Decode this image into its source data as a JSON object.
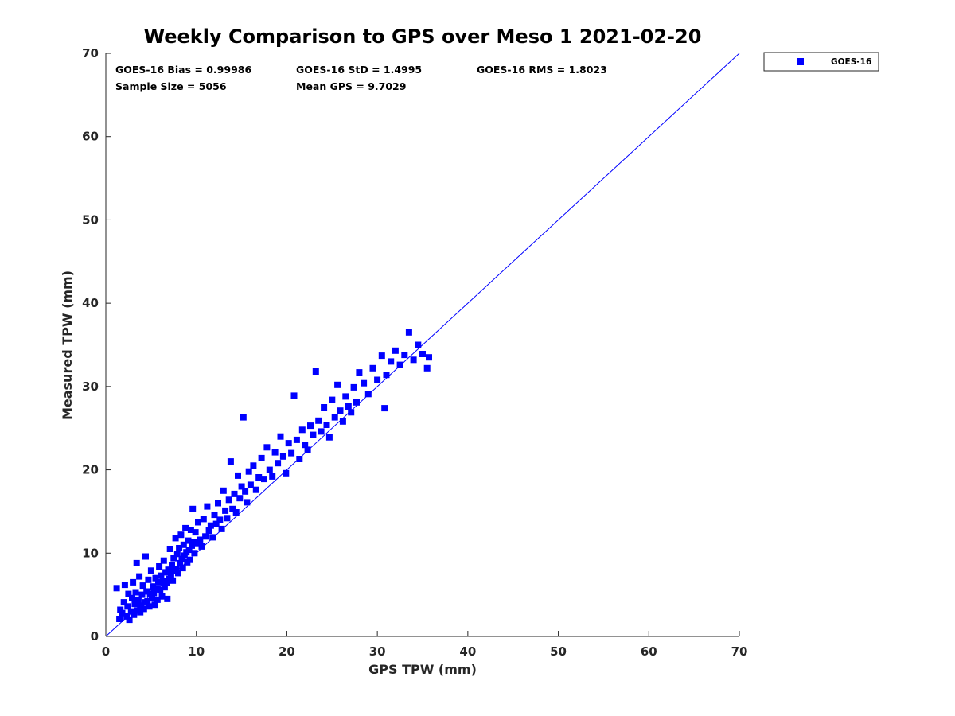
{
  "chart_data": {
    "type": "scatter",
    "title": "Weekly Comparison to GPS over Meso 1 2021-02-20",
    "xlabel": "GPS TPW (mm)",
    "ylabel": "Measured TPW (mm)",
    "xlim": [
      0,
      70
    ],
    "ylim": [
      0,
      70
    ],
    "xticks": [
      "0",
      "10",
      "20",
      "30",
      "40",
      "50",
      "60",
      "70"
    ],
    "yticks": [
      "0",
      "10",
      "20",
      "30",
      "40",
      "50",
      "60",
      "70"
    ],
    "grid": false,
    "legend_position": "outside-top-right",
    "reference_line": {
      "from": [
        0,
        0
      ],
      "to": [
        70,
        70
      ],
      "color": "#0000ff"
    },
    "annotations": {
      "bias": "GOES-16 Bias = 0.99986",
      "std": "GOES-16 StD = 1.4995",
      "rms": "GOES-16 RMS = 1.8023",
      "sample": "Sample Size = 5056",
      "mean": "Mean GPS = 9.7029"
    },
    "series": [
      {
        "name": "GOES-16",
        "color": "#0000ff",
        "marker": "square",
        "points": [
          [
            1.2,
            5.8
          ],
          [
            1.5,
            2.1
          ],
          [
            1.6,
            3.2
          ],
          [
            1.8,
            2.8
          ],
          [
            2.0,
            4.1
          ],
          [
            2.1,
            6.2
          ],
          [
            2.3,
            2.4
          ],
          [
            2.4,
            3.6
          ],
          [
            2.5,
            5.1
          ],
          [
            2.6,
            2.0
          ],
          [
            2.8,
            3.0
          ],
          [
            2.9,
            4.6
          ],
          [
            3.0,
            6.5
          ],
          [
            3.1,
            2.6
          ],
          [
            3.2,
            3.9
          ],
          [
            3.3,
            5.3
          ],
          [
            3.4,
            8.8
          ],
          [
            3.5,
            3.1
          ],
          [
            3.6,
            4.4
          ],
          [
            3.7,
            7.2
          ],
          [
            3.8,
            2.9
          ],
          [
            3.9,
            3.7
          ],
          [
            4.0,
            5.0
          ],
          [
            4.1,
            6.1
          ],
          [
            4.2,
            3.3
          ],
          [
            4.3,
            4.1
          ],
          [
            4.4,
            9.6
          ],
          [
            4.5,
            5.4
          ],
          [
            4.6,
            4.2
          ],
          [
            4.7,
            6.8
          ],
          [
            4.8,
            3.6
          ],
          [
            4.9,
            5.1
          ],
          [
            5.0,
            7.9
          ],
          [
            5.1,
            4.6
          ],
          [
            5.2,
            6.0
          ],
          [
            5.3,
            5.2
          ],
          [
            5.4,
            3.8
          ],
          [
            5.5,
            7.0
          ],
          [
            5.6,
            5.7
          ],
          [
            5.7,
            4.4
          ],
          [
            5.8,
            6.5
          ],
          [
            5.9,
            8.4
          ],
          [
            6.0,
            5.6
          ],
          [
            6.1,
            7.3
          ],
          [
            6.2,
            4.8
          ],
          [
            6.3,
            6.6
          ],
          [
            6.4,
            9.1
          ],
          [
            6.5,
            5.9
          ],
          [
            6.6,
            7.7
          ],
          [
            6.7,
            6.4
          ],
          [
            6.8,
            4.5
          ],
          [
            6.9,
            8.0
          ],
          [
            7.0,
            6.9
          ],
          [
            7.1,
            10.5
          ],
          [
            7.2,
            7.3
          ],
          [
            7.3,
            8.5
          ],
          [
            7.4,
            6.7
          ],
          [
            7.5,
            9.4
          ],
          [
            7.6,
            7.9
          ],
          [
            7.7,
            11.8
          ],
          [
            7.8,
            8.1
          ],
          [
            7.9,
            9.9
          ],
          [
            8.0,
            7.6
          ],
          [
            8.1,
            10.6
          ],
          [
            8.2,
            8.8
          ],
          [
            8.3,
            12.2
          ],
          [
            8.4,
            9.3
          ],
          [
            8.5,
            8.2
          ],
          [
            8.6,
            11.0
          ],
          [
            8.7,
            9.7
          ],
          [
            8.8,
            13.0
          ],
          [
            8.9,
            10.1
          ],
          [
            9.0,
            8.9
          ],
          [
            9.1,
            11.5
          ],
          [
            9.2,
            10.4
          ],
          [
            9.3,
            9.2
          ],
          [
            9.4,
            12.8
          ],
          [
            9.5,
            10.9
          ],
          [
            9.6,
            15.3
          ],
          [
            9.7,
            11.3
          ],
          [
            9.8,
            10.0
          ],
          [
            9.9,
            12.5
          ],
          [
            10.0,
            11.2
          ],
          [
            10.2,
            13.7
          ],
          [
            10.4,
            11.6
          ],
          [
            10.6,
            10.8
          ],
          [
            10.8,
            14.1
          ],
          [
            11.0,
            12.0
          ],
          [
            11.2,
            15.6
          ],
          [
            11.4,
            12.7
          ],
          [
            11.6,
            13.3
          ],
          [
            11.8,
            11.9
          ],
          [
            12.0,
            14.6
          ],
          [
            12.2,
            13.5
          ],
          [
            12.4,
            16.0
          ],
          [
            12.6,
            14.0
          ],
          [
            12.8,
            12.9
          ],
          [
            13.0,
            17.5
          ],
          [
            13.2,
            15.1
          ],
          [
            13.4,
            14.2
          ],
          [
            13.6,
            16.4
          ],
          [
            13.8,
            21.0
          ],
          [
            14.0,
            15.3
          ],
          [
            14.2,
            17.1
          ],
          [
            14.4,
            14.9
          ],
          [
            14.6,
            19.3
          ],
          [
            14.8,
            16.6
          ],
          [
            15.0,
            18.0
          ],
          [
            15.2,
            26.3
          ],
          [
            15.4,
            17.4
          ],
          [
            15.6,
            16.1
          ],
          [
            15.8,
            19.8
          ],
          [
            16.0,
            18.2
          ],
          [
            16.3,
            20.5
          ],
          [
            16.6,
            17.6
          ],
          [
            16.9,
            19.1
          ],
          [
            17.2,
            21.4
          ],
          [
            17.5,
            18.9
          ],
          [
            17.8,
            22.7
          ],
          [
            18.1,
            20.0
          ],
          [
            18.4,
            19.2
          ],
          [
            18.7,
            22.1
          ],
          [
            19.0,
            20.8
          ],
          [
            19.3,
            24.0
          ],
          [
            19.6,
            21.6
          ],
          [
            19.9,
            19.6
          ],
          [
            20.2,
            23.2
          ],
          [
            20.5,
            22.0
          ],
          [
            20.8,
            28.9
          ],
          [
            21.1,
            23.6
          ],
          [
            21.4,
            21.3
          ],
          [
            21.7,
            24.8
          ],
          [
            22.0,
            23.0
          ],
          [
            22.3,
            22.4
          ],
          [
            22.6,
            25.3
          ],
          [
            22.9,
            24.2
          ],
          [
            23.2,
            31.8
          ],
          [
            23.5,
            25.9
          ],
          [
            23.8,
            24.6
          ],
          [
            24.1,
            27.5
          ],
          [
            24.4,
            25.4
          ],
          [
            24.7,
            23.9
          ],
          [
            25.0,
            28.4
          ],
          [
            25.3,
            26.3
          ],
          [
            25.6,
            30.2
          ],
          [
            25.9,
            27.1
          ],
          [
            26.2,
            25.8
          ],
          [
            26.5,
            28.8
          ],
          [
            26.8,
            27.6
          ],
          [
            27.1,
            26.9
          ],
          [
            27.4,
            29.9
          ],
          [
            27.7,
            28.1
          ],
          [
            28.0,
            31.7
          ],
          [
            28.5,
            30.4
          ],
          [
            29.0,
            29.1
          ],
          [
            29.5,
            32.2
          ],
          [
            30.0,
            30.8
          ],
          [
            30.5,
            33.7
          ],
          [
            30.8,
            27.4
          ],
          [
            31.0,
            31.4
          ],
          [
            31.5,
            33.0
          ],
          [
            32.0,
            34.3
          ],
          [
            32.5,
            32.6
          ],
          [
            33.0,
            33.8
          ],
          [
            33.5,
            36.5
          ],
          [
            34.0,
            33.2
          ],
          [
            34.5,
            35.0
          ],
          [
            35.0,
            33.9
          ],
          [
            35.5,
            32.2
          ],
          [
            35.7,
            33.5
          ]
        ]
      }
    ]
  }
}
